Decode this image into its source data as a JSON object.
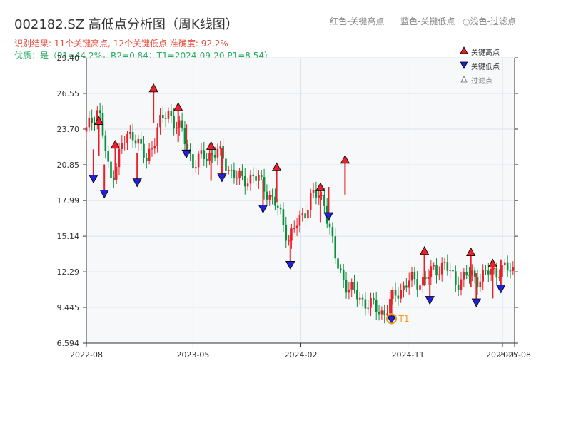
{
  "title": "002182.SZ 高低点分析图（周K线图）",
  "header_hints": {
    "red": "红色-关键高点",
    "blue": "蓝色-关键低点",
    "light_circle": "○",
    "light": "浅色-过滤点"
  },
  "subtitle1": "识别结果: 11个关键高点, 12个关键低点  准确度: 92.2%",
  "subtitle2": "优质：是（P1=44.2%，R2=0.84；T1=2024-09-20 P1=8.54）",
  "colors": {
    "up": "#e8202a",
    "down": "#0a8f3c",
    "high_marker": "#e8202a",
    "low_marker": "#2020dd",
    "subtitle1": "#e84c3d",
    "subtitle2": "#27ae60",
    "t1": "#f39c12",
    "plot_bg": "#f6f8fa",
    "grid": "#dde3ea"
  },
  "legend": [
    {
      "label": "关键高点",
      "icon": "red-up-triangle"
    },
    {
      "label": "关键低点",
      "icon": "blue-down-triangle"
    },
    {
      "label": "过滤点",
      "icon": "light-up-triangle"
    }
  ],
  "chart_data": {
    "type": "candlestick",
    "title": "002182.SZ 高低点分析图（周K线图）",
    "xlabel": "",
    "ylabel": "",
    "ylim": [
      6.594,
      29.4
    ],
    "yticks": [
      "29.40",
      "26.55",
      "23.70",
      "20.85",
      "17.99",
      "15.14",
      "12.29",
      "9.445",
      "6.594"
    ],
    "xticks": [
      "2022-08",
      "2023-05",
      "2024-02",
      "2024-11",
      "2025-07",
      "2025-08"
    ],
    "xlim": [
      "2022-08",
      "2025-08"
    ],
    "grid": true,
    "legend_position": "top-right",
    "close_path": [
      [
        "2022-08",
        23.5
      ],
      [
        "2022-09",
        25.5
      ],
      [
        "2022-10",
        19.5
      ],
      [
        "2022-11",
        22.5
      ],
      [
        "2022-12",
        23.5
      ],
      [
        "2023-01",
        21.0
      ],
      [
        "2023-02",
        24.0
      ],
      [
        "2023-03",
        25.0
      ],
      [
        "2023-04",
        23.5
      ],
      [
        "2023-05",
        21.0
      ],
      [
        "2023-06",
        21.5
      ],
      [
        "2023-07",
        22.0
      ],
      [
        "2023-08",
        20.5
      ],
      [
        "2023-09",
        19.5
      ],
      [
        "2023-10",
        20.0
      ],
      [
        "2023-11",
        19.0
      ],
      [
        "2023-12",
        17.5
      ],
      [
        "2024-01",
        15.0
      ],
      [
        "2024-02",
        16.5
      ],
      [
        "2024-03",
        18.5
      ],
      [
        "2024-04",
        18.0
      ],
      [
        "2024-05",
        13.0
      ],
      [
        "2024-06",
        11.0
      ],
      [
        "2024-07",
        10.2
      ],
      [
        "2024-08",
        9.5
      ],
      [
        "2024-09",
        9.0
      ],
      [
        "2024-10",
        10.5
      ],
      [
        "2024-11",
        11.5
      ],
      [
        "2024-12",
        11.5
      ],
      [
        "2025-01",
        12.2
      ],
      [
        "2025-02",
        13.0
      ],
      [
        "2025-03",
        11.5
      ],
      [
        "2025-04",
        12.0
      ],
      [
        "2025-05",
        11.8
      ],
      [
        "2025-06",
        12.3
      ],
      [
        "2025-07",
        12.5
      ],
      [
        "2025-08",
        12.4
      ]
    ],
    "key_highs": [
      {
        "date": "2022-09-02",
        "price": 24.3
      },
      {
        "date": "2022-10-14",
        "price": 22.4
      },
      {
        "date": "2023-01-20",
        "price": 26.9
      },
      {
        "date": "2023-03-24",
        "price": 25.4
      },
      {
        "date": "2023-06-16",
        "price": 22.3
      },
      {
        "date": "2023-12-01",
        "price": 20.6
      },
      {
        "date": "2024-03-22",
        "price": 19.0
      },
      {
        "date": "2024-05-24",
        "price": 21.2
      },
      {
        "date": "2024-12-13",
        "price": 13.9
      },
      {
        "date": "2025-04-11",
        "price": 13.8
      },
      {
        "date": "2025-06-06",
        "price": 12.9
      }
    ],
    "key_lows": [
      {
        "date": "2022-08-19",
        "price": 19.8
      },
      {
        "date": "2022-09-16",
        "price": 18.6
      },
      {
        "date": "2022-12-09",
        "price": 19.5
      },
      {
        "date": "2023-04-14",
        "price": 21.8
      },
      {
        "date": "2023-07-14",
        "price": 19.9
      },
      {
        "date": "2023-10-27",
        "price": 17.4
      },
      {
        "date": "2024-01-05",
        "price": 12.9
      },
      {
        "date": "2024-04-12",
        "price": 16.8
      },
      {
        "date": "2024-09-20",
        "price": 8.54
      },
      {
        "date": "2024-12-27",
        "price": 10.1
      },
      {
        "date": "2025-04-25",
        "price": 9.9
      },
      {
        "date": "2025-06-27",
        "price": 11.0
      }
    ],
    "annotations": [
      {
        "label": "T1",
        "date": "2024-09-20",
        "price": 8.54
      }
    ]
  }
}
